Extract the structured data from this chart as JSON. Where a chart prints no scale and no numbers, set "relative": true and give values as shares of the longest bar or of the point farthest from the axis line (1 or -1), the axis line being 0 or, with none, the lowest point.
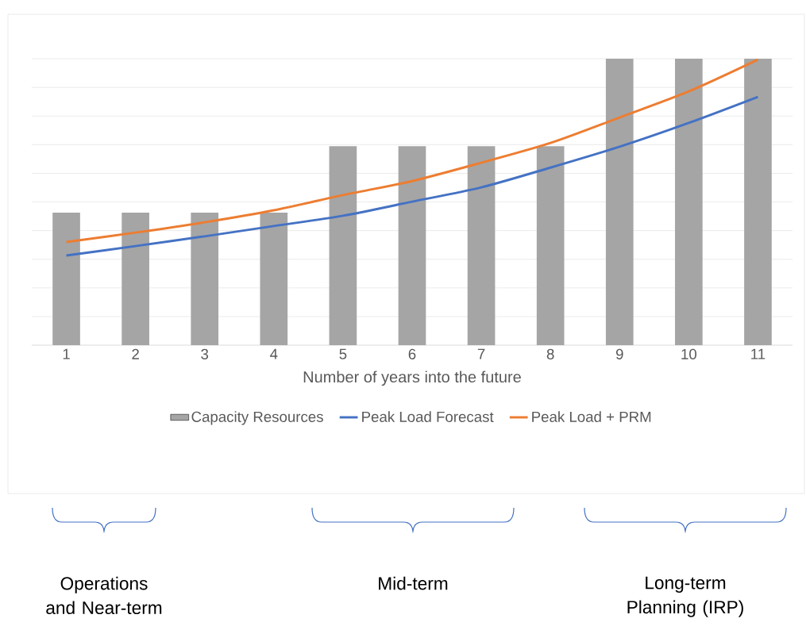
{
  "chart_data": {
    "type": "bar",
    "relative": true,
    "xlabel": "Number of years into the future",
    "categories": [
      "1",
      "2",
      "3",
      "4",
      "5",
      "6",
      "7",
      "8",
      "9",
      "10",
      "11"
    ],
    "series": [
      {
        "name": "Capacity Resources",
        "type": "bar",
        "color": "#a5a5a5",
        "values": [
          0.463,
          0.463,
          0.463,
          0.463,
          0.695,
          0.695,
          0.695,
          0.695,
          1,
          1,
          1
        ]
      },
      {
        "name": "Peak Load Forecast",
        "type": "line",
        "color": "#4472c4",
        "values": [
          0.313,
          0.346,
          0.38,
          0.416,
          0.452,
          0.501,
          0.551,
          0.62,
          0.693,
          0.776,
          0.867
        ]
      },
      {
        "name": "Peak Load + PRM",
        "type": "line",
        "color": "#ed7d31",
        "values": [
          0.36,
          0.393,
          0.429,
          0.471,
          0.524,
          0.573,
          0.637,
          0.706,
          0.795,
          0.886,
          0.997
        ]
      }
    ],
    "grid": "y",
    "legend": "bottom",
    "tick_labels": "x",
    "marker": "none",
    "line_style": "solid",
    "annotations": [
      "Operations and Near-term",
      "Mid-term",
      "Long-term Planning (IRP)"
    ]
  }
}
